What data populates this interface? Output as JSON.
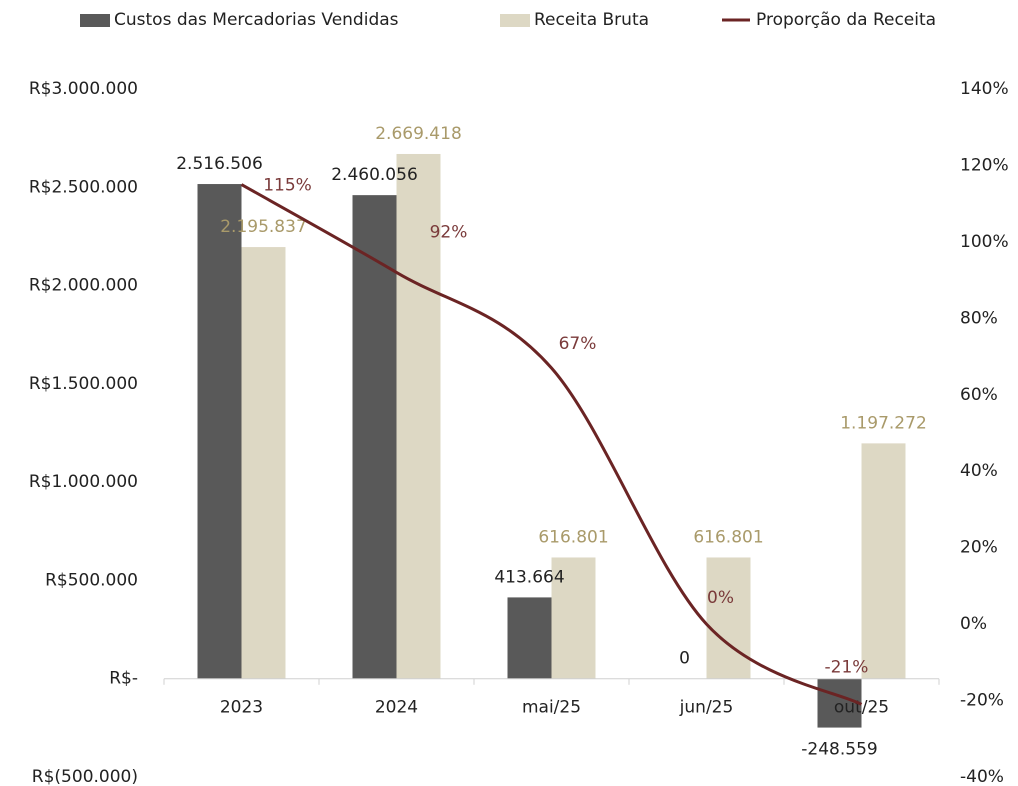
{
  "chart_data": {
    "type": "bar_line",
    "categories": [
      "2023",
      "2024",
      "mai/25",
      "jun/25",
      "out/25"
    ],
    "series": [
      {
        "name": "Custos das Mercadorias Vendidas",
        "color": "#595959",
        "type": "bar",
        "values": [
          2516506,
          2460056,
          413664,
          0,
          -248559
        ],
        "value_labels": [
          "2.516.506",
          "2.460.056",
          "413.664",
          "0",
          "-248.559"
        ]
      },
      {
        "name": "Receita Bruta",
        "color": "#ddd8c4",
        "label_color": "#a99a6a",
        "type": "bar",
        "values": [
          2195837,
          2669418,
          616801,
          616801,
          1197272
        ],
        "value_labels": [
          "2.195.837",
          "2.669.418",
          "616.801",
          "616.801",
          "1.197.272"
        ]
      },
      {
        "name": "Proporção da Receita",
        "color": "#6b2424",
        "label_color": "#7a3a3a",
        "type": "line",
        "axis": "y2",
        "values": [
          115,
          92,
          67,
          0,
          -21
        ],
        "value_labels": [
          "115%",
          "92%",
          "67%",
          "0%",
          "-21%"
        ]
      }
    ],
    "ylim": [
      -500000,
      3000000
    ],
    "yticks": [
      {
        "value": -500000,
        "label": "R$(500.000)"
      },
      {
        "value": 0,
        "label": "R$-"
      },
      {
        "value": 500000,
        "label": "R$500.000"
      },
      {
        "value": 1000000,
        "label": "R$1.000.000"
      },
      {
        "value": 1500000,
        "label": "R$1.500.000"
      },
      {
        "value": 2000000,
        "label": "R$2.000.000"
      },
      {
        "value": 2500000,
        "label": "R$2.500.000"
      },
      {
        "value": 3000000,
        "label": "R$3.000.000"
      }
    ],
    "y2lim": [
      -40,
      140
    ],
    "y2ticks": [
      {
        "value": -40,
        "label": "-40%"
      },
      {
        "value": -20,
        "label": "-20%"
      },
      {
        "value": 0,
        "label": "0%"
      },
      {
        "value": 20,
        "label": "20%"
      },
      {
        "value": 40,
        "label": "40%"
      },
      {
        "value": 60,
        "label": "60%"
      },
      {
        "value": 80,
        "label": "80%"
      },
      {
        "value": 100,
        "label": "100%"
      },
      {
        "value": 120,
        "label": "120%"
      },
      {
        "value": 140,
        "label": "140%"
      }
    ],
    "legend": "top"
  }
}
